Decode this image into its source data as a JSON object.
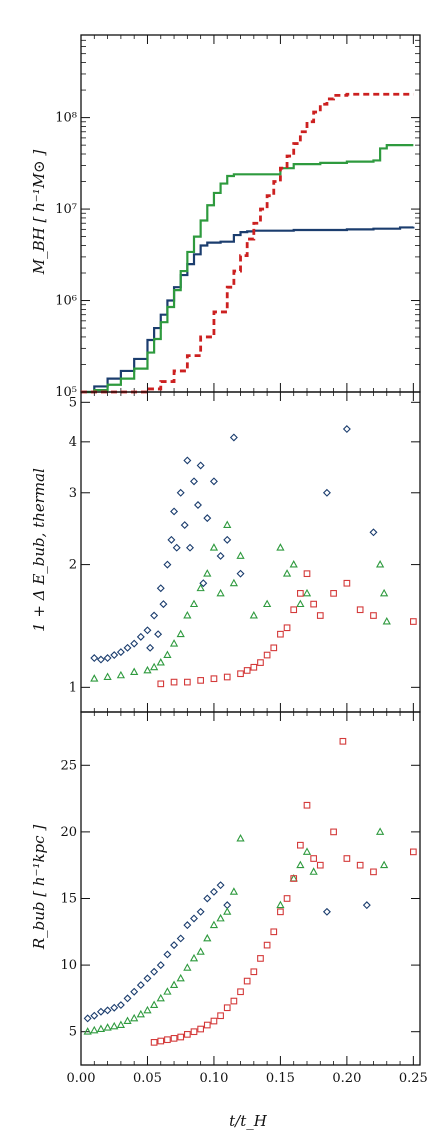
{
  "chart_data": [
    {
      "type": "line",
      "ylabel": "M_BH [ h⁻¹M⊙ ]",
      "yscale": "log",
      "ylim": [
        100000,
        800000000
      ],
      "xlim": [
        0.0,
        0.255
      ],
      "ytick_labels": [
        "10⁵",
        "10⁶",
        "10⁷",
        "10⁸"
      ],
      "series": [
        {
          "color": "#1b3d6e",
          "style": "solid",
          "x": [
            0.0,
            0.01,
            0.02,
            0.03,
            0.04,
            0.05,
            0.055,
            0.06,
            0.065,
            0.07,
            0.075,
            0.08,
            0.085,
            0.09,
            0.095,
            0.1,
            0.105,
            0.11,
            0.115,
            0.12,
            0.125,
            0.13,
            0.14,
            0.15,
            0.16,
            0.18,
            0.2,
            0.22,
            0.24,
            0.25
          ],
          "y": [
            100000,
            115000,
            140000,
            170000,
            230000,
            370000,
            500000,
            700000,
            1000000,
            1400000,
            1900000,
            2500000,
            3200000,
            4000000,
            4300000,
            4300000,
            4400000,
            4400000,
            5200000,
            5600000,
            5700000,
            5800000,
            5800000,
            5800000,
            5900000,
            5900000,
            6000000,
            6100000,
            6300000,
            6400000
          ]
        },
        {
          "color": "#2e9a3e",
          "style": "solid-dotted",
          "x": [
            0.0,
            0.01,
            0.02,
            0.03,
            0.04,
            0.05,
            0.055,
            0.06,
            0.065,
            0.07,
            0.075,
            0.08,
            0.085,
            0.09,
            0.095,
            0.1,
            0.105,
            0.11,
            0.115,
            0.12,
            0.14,
            0.15,
            0.16,
            0.18,
            0.2,
            0.215,
            0.22,
            0.225,
            0.23,
            0.25
          ],
          "y": [
            100000,
            105000,
            120000,
            140000,
            180000,
            270000,
            380000,
            580000,
            850000,
            1300000,
            2100000,
            3400000,
            5000000,
            7500000,
            11000000,
            15000000,
            19000000,
            23000000,
            24000000,
            24000000,
            24000000,
            28000000,
            31000000,
            32000000,
            33000000,
            33000000,
            34000000,
            46000000,
            50000000,
            50000000
          ]
        },
        {
          "color": "#cc2020",
          "style": "dashed",
          "x": [
            0.0,
            0.02,
            0.04,
            0.05,
            0.06,
            0.07,
            0.08,
            0.09,
            0.1,
            0.11,
            0.115,
            0.12,
            0.125,
            0.13,
            0.135,
            0.14,
            0.145,
            0.15,
            0.155,
            0.16,
            0.165,
            0.17,
            0.175,
            0.18,
            0.185,
            0.19,
            0.2,
            0.21,
            0.22,
            0.25
          ],
          "y": [
            100000,
            100000,
            100000,
            108000,
            130000,
            170000,
            250000,
            400000,
            750000,
            1400000,
            2100000,
            3100000,
            4700000,
            7000000,
            10000000,
            14000000,
            20000000,
            28000000,
            38000000,
            52000000,
            70000000,
            90000000,
            115000000,
            140000000,
            160000000,
            175000000,
            180000000,
            180000000,
            180000000,
            180000000
          ]
        }
      ]
    },
    {
      "type": "scatter",
      "ylabel": "1 + Δ E_bub, thermal",
      "yscale": "log",
      "ylim": [
        0.87,
        5.3
      ],
      "xlim": [
        0.0,
        0.255
      ],
      "ytick_labels": [
        "1",
        "2",
        "3",
        "4",
        "5"
      ],
      "series": [
        {
          "color": "#1b3d6e",
          "marker": "diamond",
          "x": [
            0.01,
            0.015,
            0.02,
            0.025,
            0.03,
            0.035,
            0.04,
            0.045,
            0.05,
            0.052,
            0.055,
            0.058,
            0.06,
            0.062,
            0.065,
            0.068,
            0.07,
            0.072,
            0.075,
            0.078,
            0.08,
            0.082,
            0.085,
            0.088,
            0.09,
            0.092,
            0.095,
            0.1,
            0.105,
            0.11,
            0.115,
            0.12,
            0.185,
            0.2,
            0.22
          ],
          "y": [
            1.18,
            1.17,
            1.18,
            1.2,
            1.22,
            1.25,
            1.28,
            1.33,
            1.38,
            1.25,
            1.5,
            1.35,
            1.75,
            1.6,
            2.0,
            2.3,
            2.7,
            2.2,
            3.0,
            2.5,
            3.6,
            2.2,
            3.2,
            2.8,
            3.5,
            1.8,
            2.6,
            3.2,
            2.1,
            2.3,
            4.1,
            1.9,
            3.0,
            4.3,
            2.4
          ]
        },
        {
          "color": "#2e9a3e",
          "marker": "triangle",
          "x": [
            0.01,
            0.02,
            0.03,
            0.04,
            0.05,
            0.055,
            0.06,
            0.065,
            0.07,
            0.075,
            0.08,
            0.085,
            0.09,
            0.095,
            0.1,
            0.105,
            0.11,
            0.115,
            0.12,
            0.13,
            0.14,
            0.15,
            0.155,
            0.16,
            0.165,
            0.17,
            0.225,
            0.228,
            0.23
          ],
          "y": [
            1.05,
            1.06,
            1.07,
            1.09,
            1.1,
            1.12,
            1.15,
            1.2,
            1.28,
            1.35,
            1.5,
            1.6,
            1.75,
            1.9,
            2.2,
            1.7,
            2.5,
            1.8,
            2.1,
            1.5,
            1.6,
            2.2,
            1.9,
            2.0,
            1.6,
            1.7,
            2.0,
            1.7,
            1.45
          ]
        },
        {
          "color": "#d43a3a",
          "marker": "square",
          "x": [
            0.06,
            0.07,
            0.08,
            0.09,
            0.1,
            0.11,
            0.12,
            0.125,
            0.13,
            0.135,
            0.14,
            0.145,
            0.15,
            0.155,
            0.16,
            0.165,
            0.17,
            0.175,
            0.18,
            0.19,
            0.2,
            0.21,
            0.22,
            0.25
          ],
          "y": [
            1.02,
            1.03,
            1.03,
            1.04,
            1.05,
            1.06,
            1.08,
            1.1,
            1.12,
            1.15,
            1.2,
            1.25,
            1.35,
            1.4,
            1.55,
            1.7,
            1.9,
            1.6,
            1.5,
            1.7,
            1.8,
            1.55,
            1.5,
            1.45
          ]
        }
      ]
    },
    {
      "type": "scatter",
      "xlabel": "t/t_H",
      "ylabel": "R_bub [ h⁻¹kpc ]",
      "ylim": [
        2.5,
        29.0
      ],
      "xlim": [
        0.0,
        0.255
      ],
      "ytick_labels": [
        "5",
        "10",
        "15",
        "20",
        "25"
      ],
      "xtick_labels": [
        "0.00",
        "0.05",
        "0.10",
        "0.15",
        "0.20",
        "0.25"
      ],
      "series": [
        {
          "color": "#1b3d6e",
          "marker": "diamond",
          "x": [
            0.005,
            0.01,
            0.015,
            0.02,
            0.025,
            0.03,
            0.035,
            0.04,
            0.045,
            0.05,
            0.055,
            0.06,
            0.065,
            0.07,
            0.075,
            0.08,
            0.085,
            0.09,
            0.095,
            0.1,
            0.105,
            0.11,
            0.185,
            0.215
          ],
          "y": [
            6.0,
            6.2,
            6.5,
            6.6,
            6.8,
            7.0,
            7.5,
            8.0,
            8.5,
            9.0,
            9.5,
            10.0,
            10.8,
            11.5,
            12.0,
            13.0,
            13.5,
            14.0,
            15.0,
            15.5,
            16.0,
            14.5,
            14.0,
            14.5
          ]
        },
        {
          "color": "#2e9a3e",
          "marker": "triangle",
          "x": [
            0.005,
            0.01,
            0.015,
            0.02,
            0.025,
            0.03,
            0.035,
            0.04,
            0.045,
            0.05,
            0.055,
            0.06,
            0.065,
            0.07,
            0.075,
            0.08,
            0.085,
            0.09,
            0.095,
            0.1,
            0.105,
            0.11,
            0.115,
            0.12,
            0.15,
            0.16,
            0.165,
            0.17,
            0.175,
            0.225,
            0.228
          ],
          "y": [
            5.0,
            5.1,
            5.2,
            5.3,
            5.4,
            5.5,
            5.8,
            6.0,
            6.3,
            6.6,
            7.0,
            7.5,
            8.0,
            8.5,
            9.0,
            9.8,
            10.5,
            11.0,
            12.0,
            13.0,
            13.5,
            14.0,
            15.5,
            19.5,
            14.5,
            16.5,
            17.5,
            18.5,
            17.0,
            20.0,
            17.5
          ]
        },
        {
          "color": "#d43a3a",
          "marker": "square",
          "x": [
            0.055,
            0.06,
            0.065,
            0.07,
            0.075,
            0.08,
            0.085,
            0.09,
            0.095,
            0.1,
            0.105,
            0.11,
            0.115,
            0.12,
            0.125,
            0.13,
            0.135,
            0.14,
            0.145,
            0.15,
            0.155,
            0.16,
            0.165,
            0.17,
            0.175,
            0.18,
            0.19,
            0.197,
            0.2,
            0.21,
            0.22,
            0.25
          ],
          "y": [
            4.2,
            4.3,
            4.4,
            4.5,
            4.6,
            4.8,
            5.0,
            5.2,
            5.5,
            5.8,
            6.2,
            6.8,
            7.3,
            8.0,
            8.8,
            9.5,
            10.5,
            11.5,
            12.5,
            14.0,
            15.0,
            16.5,
            19.0,
            22.0,
            18.0,
            17.5,
            20.0,
            26.8,
            18.0,
            17.5,
            17.0,
            18.5
          ]
        }
      ]
    }
  ]
}
